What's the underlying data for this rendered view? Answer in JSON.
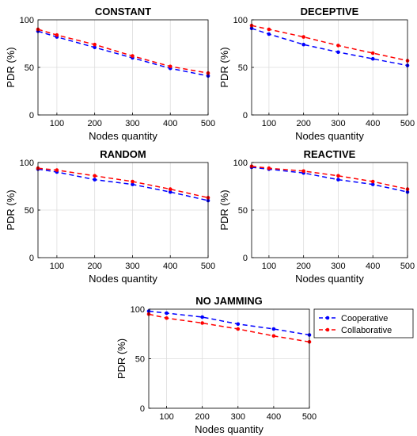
{
  "chart_data": [
    {
      "type": "line",
      "title": "CONSTANT",
      "xlabel": "Nodes quantity",
      "ylabel": "PDR (%)",
      "xlim": [
        50,
        500
      ],
      "ylim": [
        0,
        100
      ],
      "xticks": [
        "100",
        "200",
        "300",
        "400",
        "500"
      ],
      "yticks": [
        "0",
        "50",
        "100"
      ],
      "grid": true,
      "x": [
        50,
        100,
        200,
        300,
        400,
        500
      ],
      "series": [
        {
          "name": "Cooperative",
          "color": "#0000ff",
          "values": [
            88,
            82,
            71,
            60,
            49,
            41
          ]
        },
        {
          "name": "Collaborative",
          "color": "#ff0000",
          "values": [
            90,
            84,
            74,
            62,
            51,
            44
          ]
        }
      ]
    },
    {
      "type": "line",
      "title": "DECEPTIVE",
      "xlabel": "Nodes quantity",
      "ylabel": "PDR (%)",
      "xlim": [
        50,
        500
      ],
      "ylim": [
        0,
        100
      ],
      "xticks": [
        "100",
        "200",
        "300",
        "400",
        "500"
      ],
      "yticks": [
        "0",
        "50",
        "100"
      ],
      "grid": true,
      "x": [
        50,
        100,
        200,
        300,
        400,
        500
      ],
      "series": [
        {
          "name": "Cooperative",
          "color": "#0000ff",
          "values": [
            91,
            85,
            74,
            66,
            59,
            52
          ]
        },
        {
          "name": "Collaborative",
          "color": "#ff0000",
          "values": [
            94,
            90,
            82,
            73,
            65,
            57
          ]
        }
      ]
    },
    {
      "type": "line",
      "title": "RANDOM",
      "xlabel": "Nodes quantity",
      "ylabel": "PDR (%)",
      "xlim": [
        50,
        500
      ],
      "ylim": [
        0,
        100
      ],
      "xticks": [
        "100",
        "200",
        "300",
        "400",
        "500"
      ],
      "yticks": [
        "0",
        "50",
        "100"
      ],
      "grid": true,
      "x": [
        50,
        100,
        200,
        300,
        400,
        500
      ],
      "series": [
        {
          "name": "Cooperative",
          "color": "#0000ff",
          "values": [
            93,
            90,
            82,
            77,
            69,
            60
          ]
        },
        {
          "name": "Collaborative",
          "color": "#ff0000",
          "values": [
            94,
            92,
            86,
            80,
            72,
            63
          ]
        }
      ]
    },
    {
      "type": "line",
      "title": "REACTIVE",
      "xlabel": "Nodes quantity",
      "ylabel": "PDR (%)",
      "xlim": [
        50,
        500
      ],
      "ylim": [
        0,
        100
      ],
      "xticks": [
        "100",
        "200",
        "300",
        "400",
        "500"
      ],
      "yticks": [
        "0",
        "50",
        "100"
      ],
      "grid": true,
      "x": [
        50,
        100,
        200,
        300,
        400,
        500
      ],
      "series": [
        {
          "name": "Cooperative",
          "color": "#0000ff",
          "values": [
            95,
            93,
            89,
            82,
            77,
            69
          ]
        },
        {
          "name": "Collaborative",
          "color": "#ff0000",
          "values": [
            96,
            94,
            91,
            86,
            80,
            72
          ]
        }
      ]
    },
    {
      "type": "line",
      "title": "NO JAMMING",
      "xlabel": "Nodes quantity",
      "ylabel": "PDR (%)",
      "xlim": [
        50,
        500
      ],
      "ylim": [
        0,
        100
      ],
      "xticks": [
        "100",
        "200",
        "300",
        "400",
        "500"
      ],
      "yticks": [
        "0",
        "50",
        "100"
      ],
      "grid": true,
      "x": [
        50,
        100,
        200,
        300,
        400,
        500
      ],
      "series": [
        {
          "name": "Cooperative",
          "color": "#0000ff",
          "values": [
            98,
            96,
            92,
            85,
            80,
            74
          ]
        },
        {
          "name": "Collaborative",
          "color": "#ff0000",
          "values": [
            95,
            91,
            86,
            80,
            73,
            67
          ]
        }
      ]
    }
  ],
  "legend": {
    "placement": "right of bottom chart",
    "entries": [
      {
        "label": "Cooperative",
        "color": "#0000ff"
      },
      {
        "label": "Collaborative",
        "color": "#ff0000"
      }
    ]
  }
}
